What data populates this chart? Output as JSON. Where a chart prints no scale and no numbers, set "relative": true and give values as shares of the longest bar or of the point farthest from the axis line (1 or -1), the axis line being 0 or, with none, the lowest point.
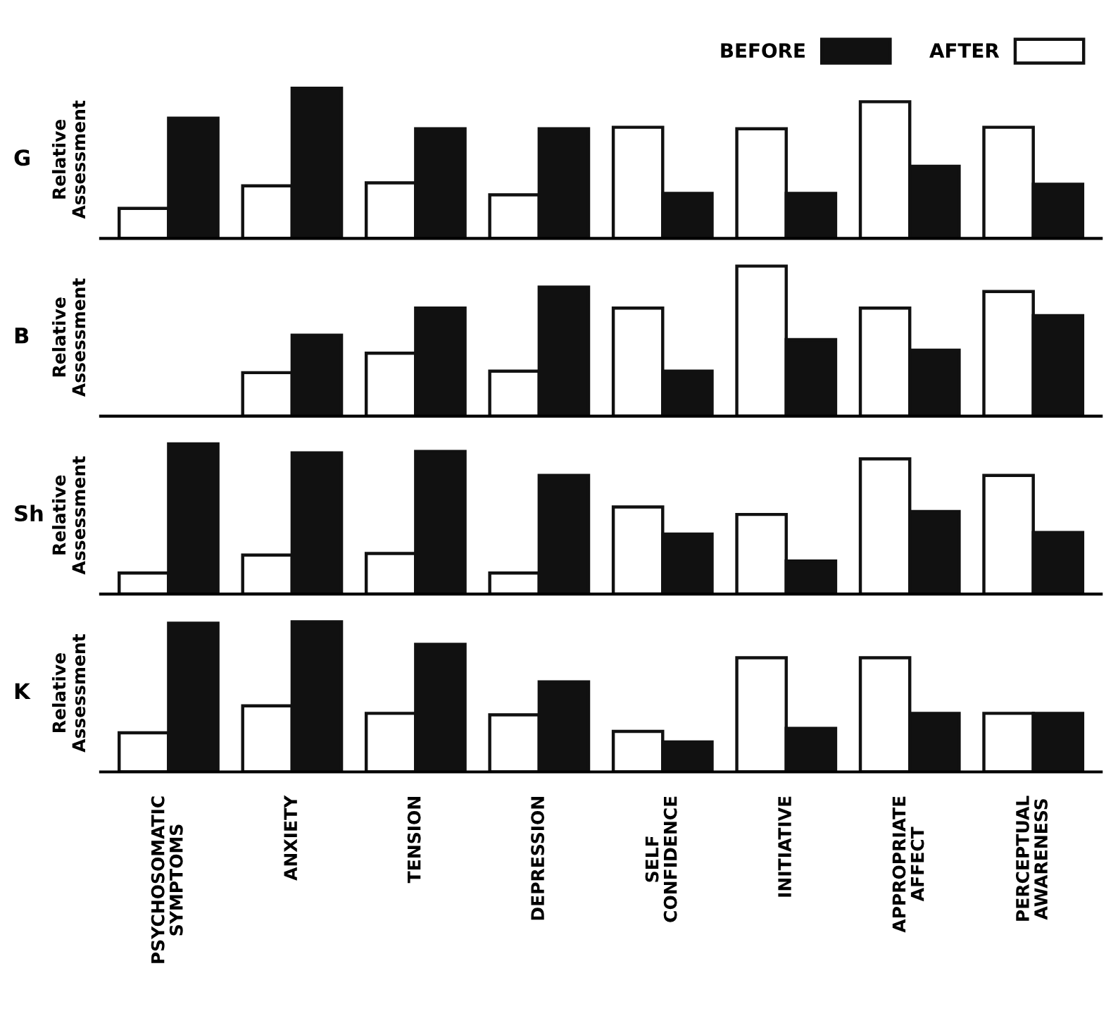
{
  "chart_data": [
    {
      "type": "bar",
      "title": "G",
      "ylabel": "Relative Assessment",
      "relative": true,
      "tick_labels": false,
      "legend": "top right",
      "grid": false,
      "series": [
        {
          "name": "AFTER",
          "color": "#ffffff",
          "values": [
            0.2,
            0.35,
            0.37,
            0.29,
            0.74,
            0.73,
            0.91,
            0.74
          ]
        },
        {
          "name": "BEFORE",
          "color": "#111111",
          "values": [
            0.8,
            1,
            0.73,
            0.73,
            0.3,
            0.3,
            0.48,
            0.36
          ]
        }
      ]
    },
    {
      "type": "bar",
      "title": "B",
      "ylabel": "Relative Assessment",
      "relative": true,
      "tick_labels": false,
      "grid": false,
      "series": [
        {
          "color": "#ffffff",
          "values": [
            null,
            0.29,
            0.42,
            0.3,
            0.72,
            1,
            0.72,
            0.83
          ]
        },
        {
          "color": "#111111",
          "values": [
            null,
            0.54,
            0.72,
            0.86,
            0.3,
            0.51,
            0.44,
            0.67
          ]
        }
      ]
    },
    {
      "type": "bar",
      "title": "Sh",
      "ylabel": "Relative Assessment",
      "relative": true,
      "tick_labels": false,
      "grid": false,
      "series": [
        {
          "color": "#ffffff",
          "values": [
            0.14,
            0.26,
            0.27,
            0.14,
            0.58,
            0.53,
            0.9,
            0.79
          ]
        },
        {
          "color": "#111111",
          "values": [
            1,
            0.94,
            0.95,
            0.79,
            0.4,
            0.22,
            0.55,
            0.41
          ]
        }
      ]
    },
    {
      "type": "bar",
      "title": "K",
      "ylabel": "Relative Assessment",
      "relative": true,
      "tick_labels": "x",
      "grid": false,
      "categories": [
        "PSYCHOSOMATIC\nSYMPTOMS",
        "ANXIETY",
        "TENSION",
        "DEPRESSION",
        "SELF\nCONFIDENCE",
        "INITIATIVE",
        "APPROPRIATE\nAFFECT",
        "PERCEPTUAL\nAWARENESS"
      ],
      "series": [
        {
          "color": "#ffffff",
          "values": [
            0.26,
            0.44,
            0.39,
            0.38,
            0.27,
            0.76,
            0.76,
            0.39
          ]
        },
        {
          "color": "#111111",
          "values": [
            0.99,
            1,
            0.85,
            0.6,
            0.2,
            0.29,
            0.39,
            0.39
          ]
        }
      ]
    }
  ]
}
